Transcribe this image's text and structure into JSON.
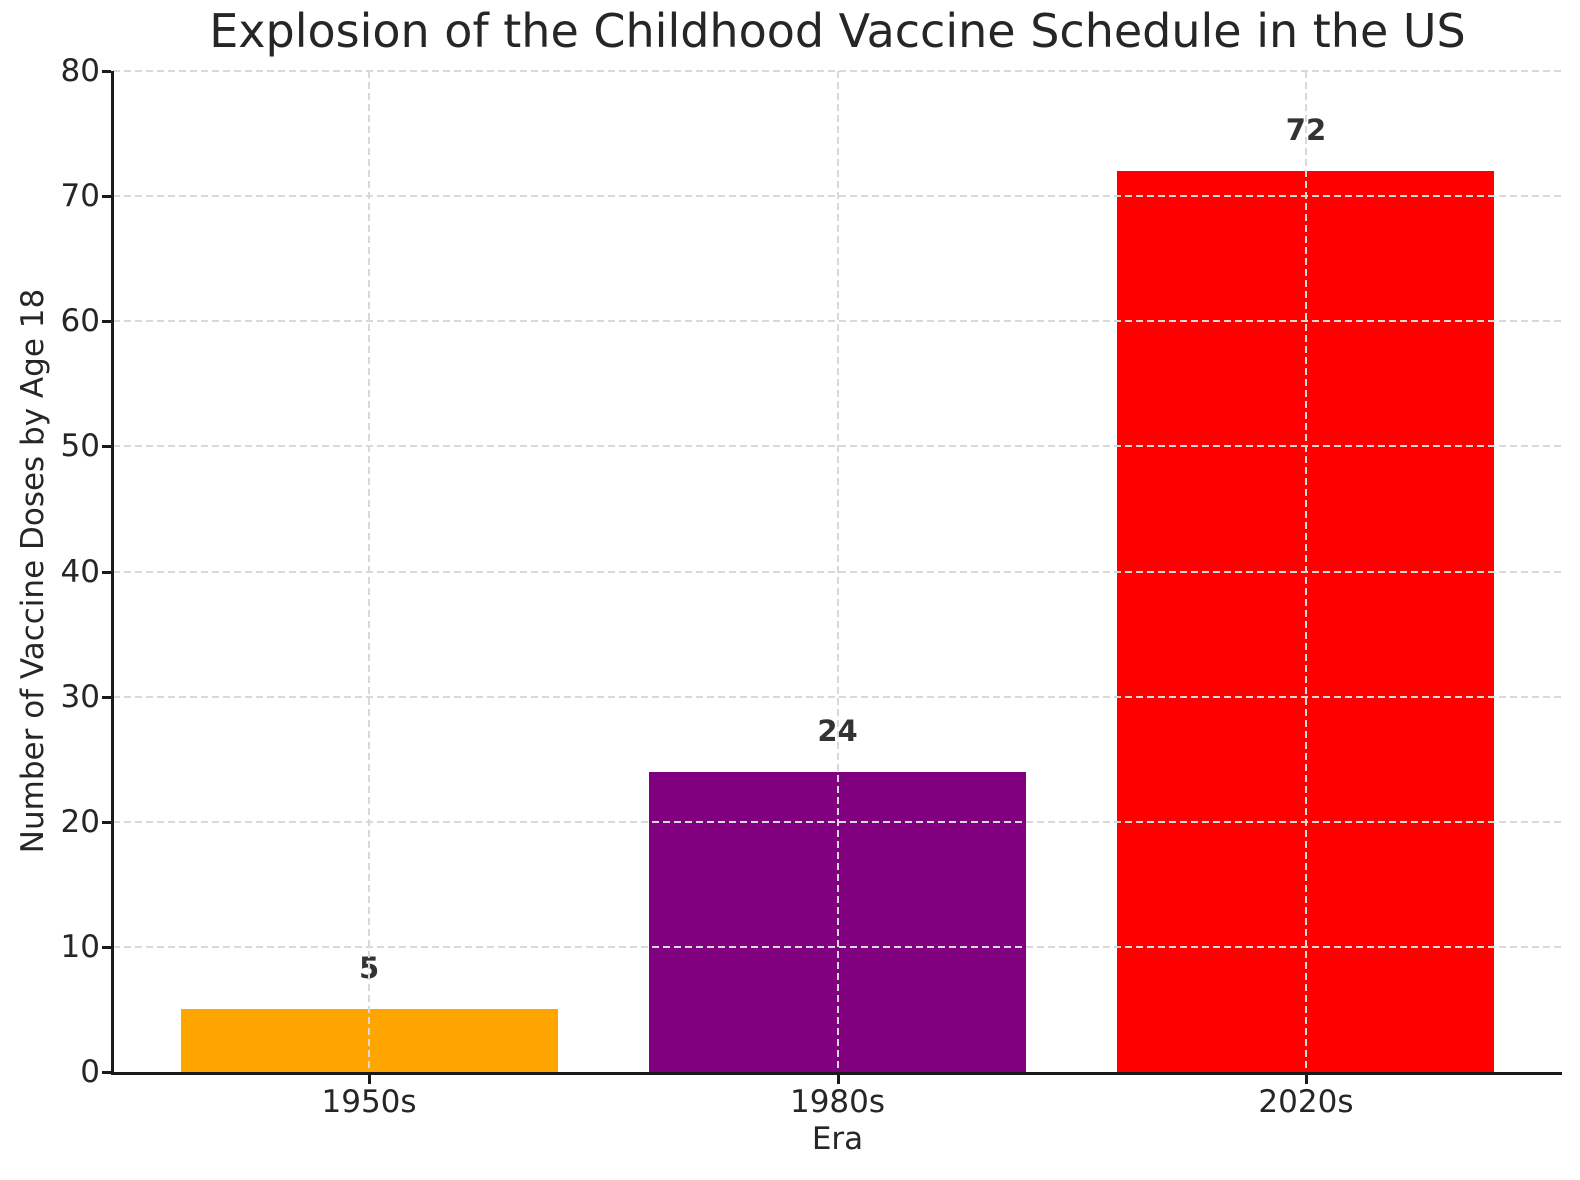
{
  "chart_data": {
    "type": "bar",
    "title": "Explosion of the Childhood Vaccine Schedule in the US",
    "xlabel": "Era",
    "ylabel": "Number of Vaccine Doses by Age 18",
    "categories": [
      "1950s",
      "1980s",
      "2020s"
    ],
    "values": [
      5,
      24,
      72
    ],
    "value_labels": [
      "5",
      "24",
      "72"
    ],
    "bar_colors": [
      "#FFA500",
      "#800080",
      "#FF0000"
    ],
    "ylim": [
      0,
      80
    ],
    "yticks": [
      0,
      10,
      20,
      30,
      40,
      50,
      60,
      70,
      80
    ],
    "grid": true,
    "grid_style": "dashed",
    "grid_color": "#d9d9d9",
    "legend": "none",
    "colors": {
      "background": "#ffffff",
      "text": "#262626",
      "value_label_text": "#333333",
      "spine": "#1a1a1a"
    }
  }
}
